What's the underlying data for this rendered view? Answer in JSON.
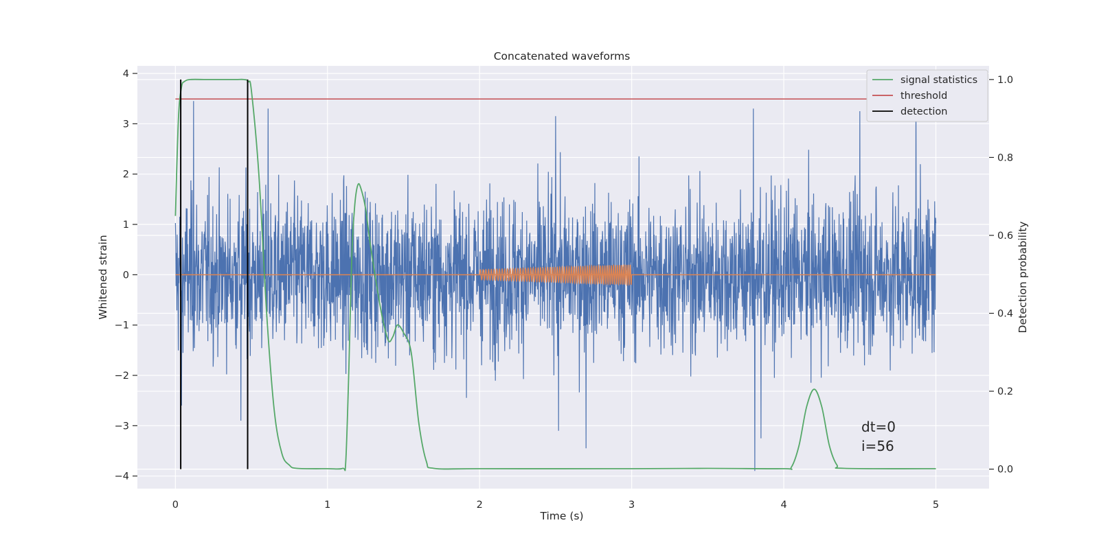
{
  "chart_data": {
    "type": "line",
    "title": "Concatenated waveforms",
    "xlabel": "Time (s)",
    "ylabel": "Whitened strain",
    "y2label": "Detection probability",
    "xlim": [
      -0.25,
      5.35
    ],
    "ylim": [
      -4.25,
      4.15
    ],
    "y2lim": [
      -0.05,
      1.035
    ],
    "xticks": [
      "0",
      "1",
      "2",
      "3",
      "4",
      "5"
    ],
    "yticks": [
      "−4",
      "−3",
      "−2",
      "−1",
      "0",
      "1",
      "2",
      "3",
      "4"
    ],
    "y2ticks": [
      "0.0",
      "0.2",
      "0.4",
      "0.6",
      "0.8",
      "1.0"
    ],
    "grid": true,
    "legend": {
      "position": "top-right",
      "entries": [
        {
          "label": "signal statistics",
          "color": "#55a868"
        },
        {
          "label": "threshold",
          "color": "#c44e52"
        },
        {
          "label": "detection",
          "color": "#000000"
        }
      ]
    },
    "colors": {
      "strain": "#4c72b0",
      "template": "#dd8452",
      "signal_statistics": "#55a868",
      "threshold": "#c44e52",
      "detection": "#000000",
      "background": "#eaeaf2",
      "grid": "#ffffff"
    },
    "series": [
      {
        "name": "signal statistics",
        "axis": "right",
        "x": [
          0,
          0.02,
          0.04,
          0.06,
          0.1,
          0.2,
          0.3,
          0.4,
          0.45,
          0.48,
          0.5,
          0.55,
          0.6,
          0.65,
          0.7,
          0.75,
          0.8,
          1.0,
          1.1,
          1.12,
          1.14,
          1.16,
          1.18,
          1.2,
          1.22,
          1.25,
          1.28,
          1.32,
          1.36,
          1.4,
          1.43,
          1.46,
          1.5,
          1.55,
          1.6,
          1.65,
          1.7,
          2.0,
          3.0,
          3.5,
          4.0,
          4.05,
          4.1,
          4.15,
          4.2,
          4.25,
          4.3,
          4.35,
          4.4,
          5.0
        ],
        "y": [
          0.65,
          0.9,
          0.98,
          0.995,
          1.0,
          1.0,
          1.0,
          1.0,
          1.0,
          0.995,
          0.97,
          0.75,
          0.4,
          0.15,
          0.04,
          0.01,
          0.002,
          0.001,
          0.002,
          0.02,
          0.25,
          0.55,
          0.68,
          0.73,
          0.72,
          0.67,
          0.58,
          0.48,
          0.39,
          0.33,
          0.34,
          0.37,
          0.35,
          0.3,
          0.12,
          0.02,
          0.002,
          0.001,
          0.001,
          0.002,
          0.001,
          0.005,
          0.06,
          0.16,
          0.205,
          0.16,
          0.06,
          0.01,
          0.002,
          0.001
        ]
      },
      {
        "name": "threshold",
        "axis": "right",
        "x": [
          0,
          5
        ],
        "y": [
          0.95,
          0.95
        ]
      },
      {
        "name": "detection",
        "axis": "right",
        "x": [
          0.035,
          0.475
        ],
        "y": [
          1.0,
          1.0
        ]
      }
    ],
    "strain": {
      "x_range": [
        0,
        5
      ],
      "y_envelope": [
        -2.6,
        3.5
      ],
      "spikes": [
        {
          "x": 0.12,
          "y": 3.45
        },
        {
          "x": 0.61,
          "y": 3.3
        },
        {
          "x": 2.5,
          "y": 3.15
        },
        {
          "x": 3.8,
          "y": 3.3
        },
        {
          "x": 4.5,
          "y": 3.25
        },
        {
          "x": 4.87,
          "y": 3.75
        },
        {
          "x": 3.81,
          "y": -3.9
        },
        {
          "x": 2.7,
          "y": -3.45
        },
        {
          "x": 2.52,
          "y": -3.1
        },
        {
          "x": 0.43,
          "y": -2.9
        },
        {
          "x": 0.04,
          "y": -2.6
        },
        {
          "x": 3.85,
          "y": -3.25
        }
      ]
    },
    "template": {
      "x_range": [
        2.0,
        3.0
      ],
      "amplitude_start": 0.1,
      "amplitude_end": 0.2
    },
    "annotations": [
      "dt=0",
      "i=56"
    ]
  }
}
